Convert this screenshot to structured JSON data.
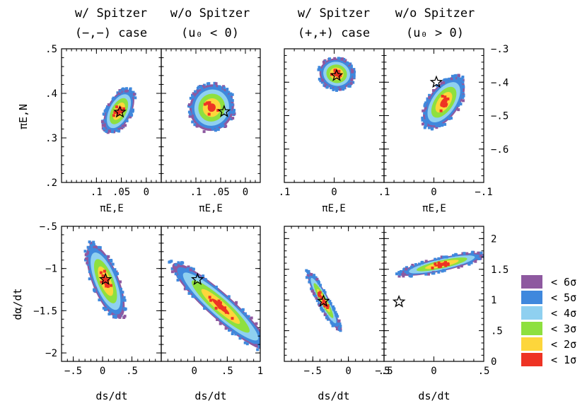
{
  "column_headers": [
    [
      "w/ Spitzer",
      "(−,−) case"
    ],
    [
      "w/o Spitzer",
      "(u₀ < 0)"
    ],
    [
      "w/ Spitzer",
      "(+,+) case"
    ],
    [
      "w/o Spitzer",
      "(u₀ > 0)"
    ]
  ],
  "axis_labels": {
    "pi_en": "πE,N",
    "pi_ee": "πE,E",
    "dalpha": "dα/dt",
    "ds": "ds/dt"
  },
  "legend": [
    {
      "label": "< 6σ",
      "color": "#8e59a0"
    },
    {
      "label": "< 5σ",
      "color": "#3f88dd"
    },
    {
      "label": "< 4σ",
      "color": "#8fd0f0"
    },
    {
      "label": "< 3σ",
      "color": "#8ee03f"
    },
    {
      "label": "< 2σ",
      "color": "#fdd63b"
    },
    {
      "label": "< 1σ",
      "color": "#ee3324"
    }
  ],
  "chart_data": [
    {
      "type": "scatter",
      "panel": "top-1",
      "title": "w/ Spitzer (−,−) case",
      "xlabel": "πE,E",
      "ylabel": "πE,N",
      "xlim": [
        0.17,
        -0.03
      ],
      "ylim": [
        0.2,
        0.5
      ],
      "xticks": [
        0.1,
        0.05,
        0
      ],
      "yticks": [
        0.2,
        0.3,
        0.4,
        0.5
      ],
      "star": [
        0.053,
        0.358
      ],
      "contours": {
        "center": [
          0.055,
          0.36
        ],
        "radii": [
          0.025,
          0.052
        ],
        "angle_deg": 65
      }
    },
    {
      "type": "scatter",
      "panel": "top-2",
      "title": "w/o Spitzer (u₀ < 0)",
      "xlabel": "πE,E",
      "ylabel": "",
      "xlim": [
        0.17,
        -0.03
      ],
      "ylim": [
        0.2,
        0.5
      ],
      "xticks": [
        0.1,
        0.05,
        0
      ],
      "yticks": [],
      "star": [
        0.043,
        0.359
      ],
      "contours": {
        "center": [
          0.068,
          0.368
        ],
        "radii": [
          0.045,
          0.052
        ],
        "angle_deg": 70
      }
    },
    {
      "type": "scatter",
      "panel": "top-3",
      "title": "w/ Spitzer (+,+) case",
      "xlabel": "πE,E",
      "ylabel": "",
      "xlim": [
        0.1,
        -0.1
      ],
      "ylim": [
        -0.7,
        -0.3
      ],
      "xticks": [
        0.1,
        0
      ],
      "yticks": [],
      "star": [
        -0.005,
        -0.38
      ],
      "contours": {
        "center": [
          -0.005,
          -0.375
        ],
        "radii": [
          0.035,
          0.045
        ],
        "angle_deg": 80
      }
    },
    {
      "type": "scatter",
      "panel": "top-4",
      "title": "w/o Spitzer (u₀ > 0)",
      "xlabel": "πE,E",
      "ylabel": "",
      "xlim": [
        0.1,
        -0.1
      ],
      "ylim": [
        -0.7,
        -0.3
      ],
      "xticks": [
        0.1,
        0,
        -0.1
      ],
      "yticks": [
        -0.3,
        -0.4,
        -0.5,
        -0.6
      ],
      "star": [
        -0.005,
        -0.4
      ],
      "contours": {
        "center": [
          -0.02,
          -0.46
        ],
        "radii": [
          0.032,
          0.08
        ],
        "angle_deg": 65
      }
    },
    {
      "type": "scatter",
      "panel": "bottom-1",
      "title": "",
      "xlabel": "ds/dt",
      "ylabel": "dα/dt",
      "xlim": [
        -0.7,
        1.0
      ],
      "ylim": [
        -2.1,
        -0.5
      ],
      "xticks": [
        -0.5,
        0,
        0.5
      ],
      "yticks": [
        -0.5,
        -1,
        -1.5,
        -2
      ],
      "star": [
        0.05,
        -1.13
      ],
      "contours": {
        "center": [
          0.05,
          -1.15
        ],
        "radii": [
          0.2,
          0.5
        ],
        "angle_deg": -60
      }
    },
    {
      "type": "scatter",
      "panel": "bottom-2",
      "title": "",
      "xlabel": "ds/dt",
      "ylabel": "",
      "xlim": [
        -0.5,
        1.0
      ],
      "ylim": [
        -2.1,
        -0.5
      ],
      "xticks": [
        0,
        0.5,
        1
      ],
      "yticks": [],
      "star": [
        0.05,
        -1.13
      ],
      "contours": {
        "center": [
          0.4,
          -1.45
        ],
        "radii": [
          0.16,
          0.88
        ],
        "angle_deg": -35
      }
    },
    {
      "type": "scatter",
      "panel": "bottom-3",
      "title": "",
      "xlabel": "ds/dt",
      "ylabel": "",
      "xlim": [
        -0.9,
        0.5
      ],
      "ylim": [
        0.0,
        2.2
      ],
      "xticks": [
        -0.5,
        0,
        0.5
      ],
      "yticks": [],
      "star": [
        -0.35,
        0.98
      ],
      "contours": {
        "center": [
          -0.35,
          0.99
        ],
        "radii": [
          0.08,
          0.52
        ],
        "angle_deg": -65
      }
    },
    {
      "type": "scatter",
      "panel": "bottom-4",
      "title": "",
      "xlabel": "ds/dt",
      "ylabel": "",
      "xlim": [
        -0.5,
        0.5
      ],
      "ylim": [
        0.0,
        2.2
      ],
      "xticks": [
        -0.5,
        0,
        0.5
      ],
      "yticks": [
        0,
        0.5,
        1,
        1.5,
        2
      ],
      "star": [
        -0.35,
        0.97
      ],
      "contours": {
        "center": [
          0.08,
          1.58
        ],
        "radii": [
          0.1,
          0.45
        ],
        "angle_deg": 20
      }
    }
  ]
}
